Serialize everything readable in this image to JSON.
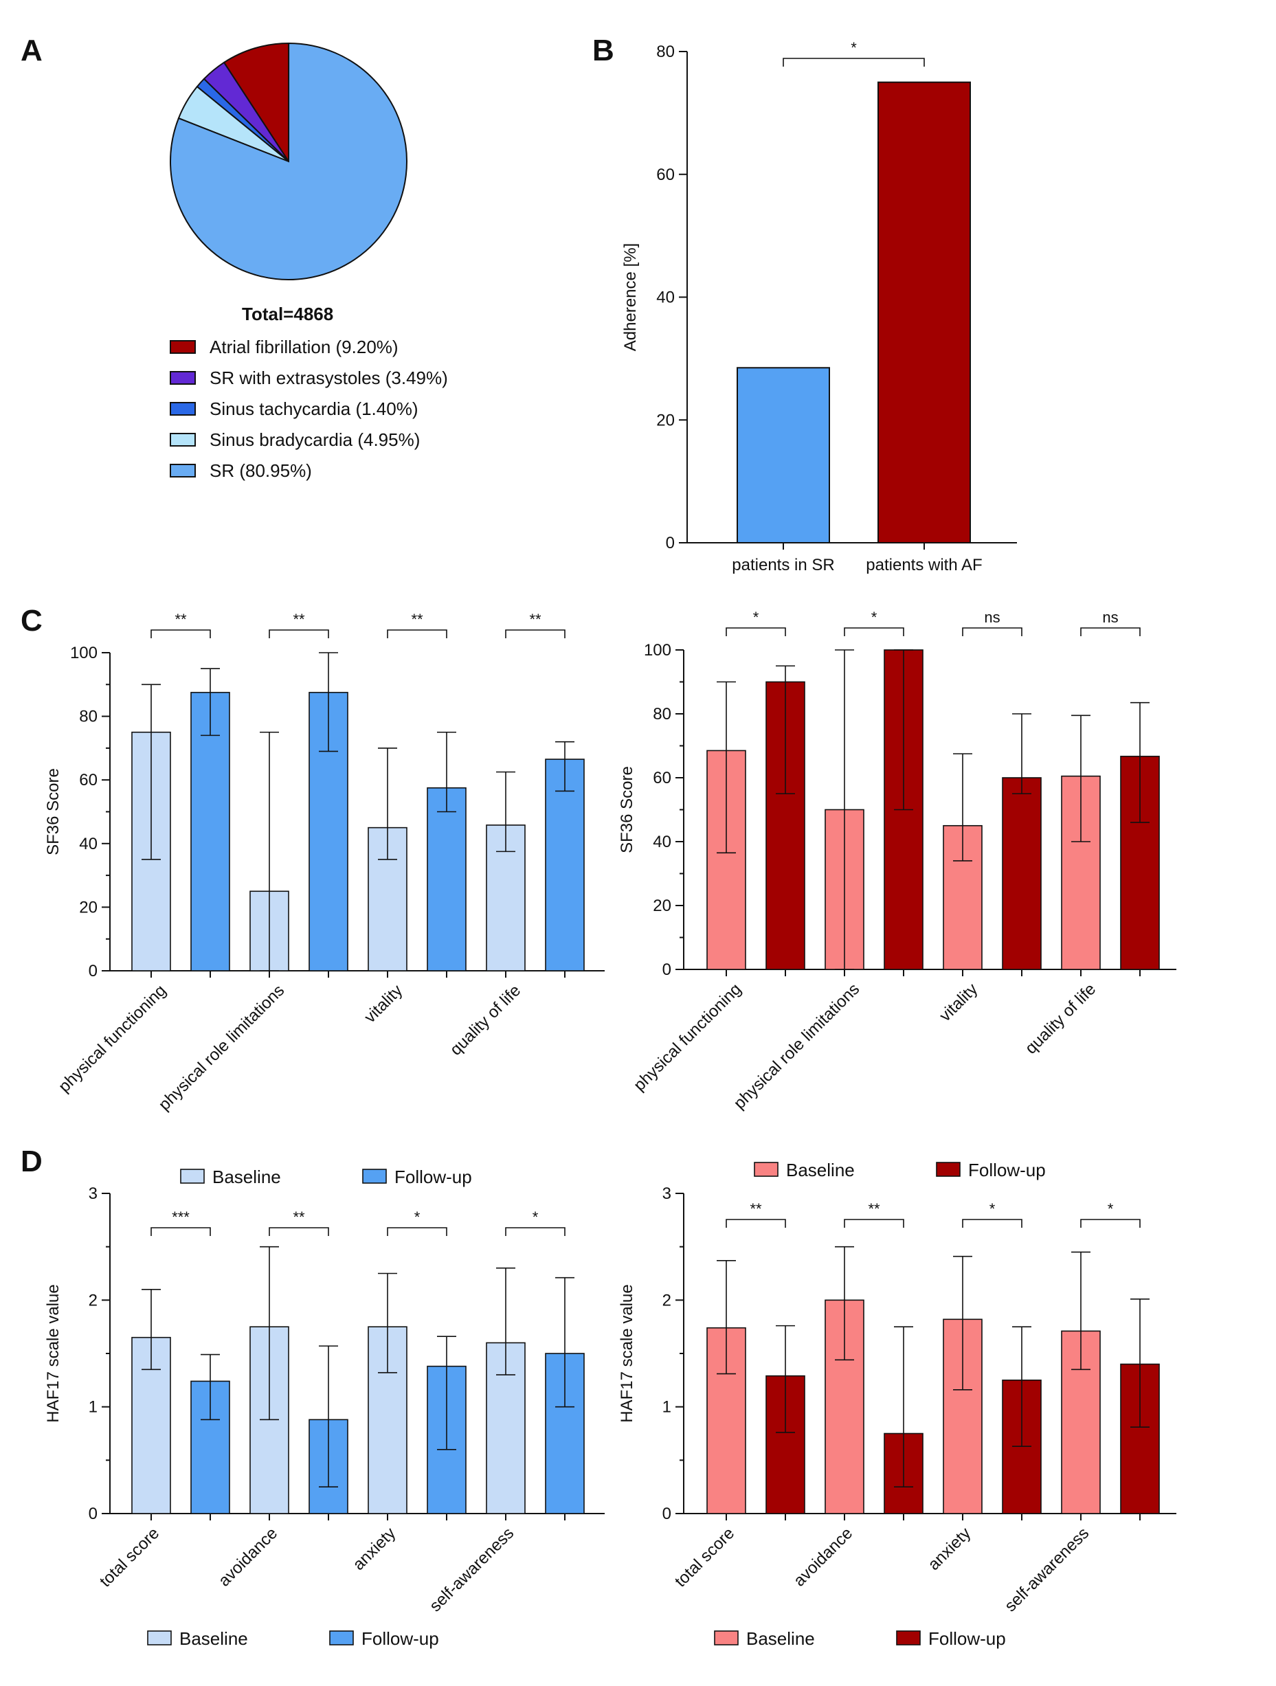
{
  "panels": {
    "a": "A",
    "b": "B",
    "c": "C",
    "d": "D"
  },
  "colors": {
    "sr_baseline": "#c6dcf7",
    "sr_followup": "#55a1f3",
    "af_baseline": "#f98383",
    "af_followup": "#a10000",
    "pie_af": "#a30000",
    "pie_extrasystoles": "#6229d4",
    "pie_tachy": "#2a68e6",
    "pie_brady": "#b5e4fa",
    "pie_sr": "#69acf3"
  },
  "legend": {
    "baseline": "Baseline",
    "followup": "Follow-up"
  },
  "chart_data": [
    {
      "id": "A",
      "type": "pie",
      "title": "Total=4868",
      "labels": [
        "Atrial fibrillation (9.20%)",
        "SR with extrasystoles (3.49%)",
        "Sinus tachycardia (1.40%)",
        "Sinus bradycardia (4.95%)",
        "SR (80.95%)"
      ],
      "values": [
        9.2,
        3.49,
        1.4,
        4.95,
        80.95
      ],
      "colors": [
        "#a30000",
        "#6229d4",
        "#2a68e6",
        "#b5e4fa",
        "#69acf3"
      ]
    },
    {
      "id": "B",
      "type": "bar",
      "categories": [
        "patients in SR",
        "patients with AF"
      ],
      "values": [
        28.5,
        75
      ],
      "colors": [
        "#55a1f3",
        "#a10000"
      ],
      "ylabel": "Adherence [%]",
      "ylim": [
        0,
        80
      ],
      "yticks": [
        0,
        20,
        40,
        60,
        80
      ],
      "significance": [
        {
          "from": 0,
          "to": 1,
          "label": "*"
        }
      ]
    },
    {
      "id": "C-left",
      "type": "bar",
      "ylabel": "SF36 Score",
      "ylim": [
        0,
        100
      ],
      "yticks": [
        0,
        20,
        40,
        60,
        80,
        100
      ],
      "categories": [
        "physical functioning",
        "physical role limitations",
        "vitality",
        "quality of life"
      ],
      "series": [
        {
          "name": "Baseline",
          "values": [
            75,
            25,
            45,
            45.8
          ],
          "err_low": [
            35,
            0,
            35,
            37.5
          ],
          "err_high": [
            90,
            75,
            70,
            62.5
          ]
        },
        {
          "name": "Follow-up",
          "values": [
            87.5,
            87.5,
            57.5,
            66.5
          ],
          "err_low": [
            74,
            69,
            50,
            56.5
          ],
          "err_high": [
            95,
            100,
            75,
            72
          ]
        }
      ],
      "significance": [
        "**",
        "**",
        "**",
        "**"
      ]
    },
    {
      "id": "C-right",
      "type": "bar",
      "ylabel": "SF36 Score",
      "ylim": [
        0,
        100
      ],
      "yticks": [
        0,
        20,
        40,
        60,
        80,
        100
      ],
      "categories": [
        "physical functioning",
        "physical role limitations",
        "vitality",
        "quality of life"
      ],
      "series": [
        {
          "name": "Baseline",
          "values": [
            68.5,
            50,
            45,
            60.5
          ],
          "err_low": [
            36.5,
            0,
            34,
            40
          ],
          "err_high": [
            90,
            100,
            67.5,
            79.5
          ]
        },
        {
          "name": "Follow-up",
          "values": [
            90,
            100,
            60,
            66.7
          ],
          "err_low": [
            55,
            50,
            55,
            46
          ],
          "err_high": [
            95,
            100,
            80,
            83.5
          ]
        }
      ],
      "significance": [
        "*",
        "*",
        "ns",
        "ns"
      ]
    },
    {
      "id": "D-left",
      "type": "bar",
      "ylabel": "HAF17 scale value",
      "ylim": [
        0,
        3
      ],
      "yticks": [
        0,
        1,
        2,
        3
      ],
      "categories": [
        "total score",
        "avoidance",
        "anxiety",
        "self-awareness"
      ],
      "series": [
        {
          "name": "Baseline",
          "values": [
            1.65,
            1.75,
            1.75,
            1.6
          ],
          "err_low": [
            1.35,
            0.88,
            1.32,
            1.3
          ],
          "err_high": [
            2.1,
            2.5,
            2.25,
            2.3
          ]
        },
        {
          "name": "Follow-up",
          "values": [
            1.24,
            0.88,
            1.38,
            1.5
          ],
          "err_low": [
            0.88,
            0.25,
            0.6,
            1.0
          ],
          "err_high": [
            1.49,
            1.57,
            1.66,
            2.21
          ]
        }
      ],
      "significance": [
        "***",
        "**",
        "*",
        "*"
      ]
    },
    {
      "id": "D-right",
      "type": "bar",
      "ylabel": "HAF17 scale value",
      "ylim": [
        0,
        3
      ],
      "yticks": [
        0,
        1,
        2,
        3
      ],
      "categories": [
        "total score",
        "avoidance",
        "anxiety",
        "self-awareness"
      ],
      "series": [
        {
          "name": "Baseline",
          "values": [
            1.74,
            2.0,
            1.82,
            1.71
          ],
          "err_low": [
            1.31,
            1.44,
            1.16,
            1.35
          ],
          "err_high": [
            2.37,
            2.5,
            2.41,
            2.45
          ]
        },
        {
          "name": "Follow-up",
          "values": [
            1.29,
            0.75,
            1.25,
            1.4
          ],
          "err_low": [
            0.76,
            0.25,
            0.63,
            0.81
          ],
          "err_high": [
            1.76,
            1.75,
            1.75,
            2.01
          ]
        }
      ],
      "significance": [
        "**",
        "**",
        "*",
        "*"
      ]
    }
  ]
}
